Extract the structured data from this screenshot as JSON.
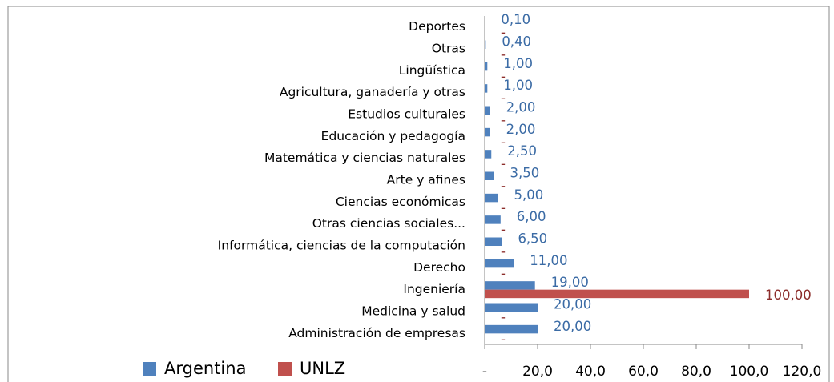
{
  "chart_data": {
    "type": "hbar",
    "categories": [
      "Deportes",
      "Otras",
      "Lingüística",
      "Agricultura, ganadería y otras",
      "Estudios culturales",
      "Educación y pedagogía",
      "Matemática y ciencias naturales",
      "Arte y afines",
      "Ciencias económicas",
      "Otras ciencias sociales...",
      "Informática, ciencias de la computación",
      "Derecho",
      "Ingeniería",
      "Medicina y salud",
      "Administración de empresas"
    ],
    "series": [
      {
        "name": "Argentina",
        "color": "#4f81bd",
        "values": [
          0.1,
          0.4,
          1,
          1,
          2,
          2,
          2.5,
          3.5,
          5,
          6,
          6.5,
          11,
          19,
          20,
          20
        ],
        "value_labels": [
          "0,10",
          "0,40",
          "1,00",
          "1,00",
          "2,00",
          "2,00",
          "2,50",
          "3,50",
          "5,00",
          "6,00",
          "6,50",
          "11,00",
          "19,00",
          "20,00",
          "20,00"
        ]
      },
      {
        "name": "UNLZ",
        "color": "#c0504d",
        "values": [
          0,
          0,
          0,
          0,
          0,
          0,
          0,
          0,
          0,
          0,
          0,
          0,
          100,
          0,
          0
        ],
        "value_labels": [
          "-",
          "-",
          "-",
          "-",
          "-",
          "-",
          "-",
          "-",
          "-",
          "-",
          "-",
          "-",
          "100,00",
          "-",
          "-"
        ]
      }
    ],
    "xlim": [
      0,
      120
    ],
    "xticks": [
      {
        "value": 0,
        "label": "-"
      },
      {
        "value": 20,
        "label": "20,0"
      },
      {
        "value": 40,
        "label": "40,0"
      },
      {
        "value": 60,
        "label": "60,0"
      },
      {
        "value": 80,
        "label": "80,0"
      },
      {
        "value": 100,
        "label": "100,0"
      },
      {
        "value": 120,
        "label": "120,0"
      }
    ],
    "legend": "bottom-left"
  }
}
